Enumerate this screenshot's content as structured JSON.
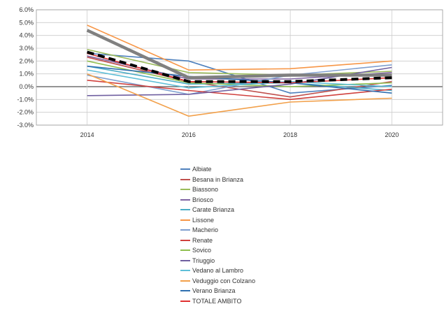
{
  "chart_data": {
    "type": "line",
    "title": "",
    "xlabel": "",
    "ylabel": "",
    "x": [
      2014,
      2016,
      2018,
      2020
    ],
    "xticks": [
      "2014",
      "2016",
      "2018",
      "2020"
    ],
    "xlim": [
      2013,
      2021
    ],
    "ylim": [
      -3.0,
      6.0
    ],
    "yticks": [
      "-3.0%",
      "-2.0%",
      "-1.0%",
      "0.0%",
      "1.0%",
      "2.0%",
      "3.0%",
      "4.0%",
      "5.0%",
      "6.0%"
    ],
    "grid": true,
    "legend_position": "bottom",
    "series": [
      {
        "name": "Albiate",
        "color": "#4f81bd",
        "values": [
          2.6,
          2.0,
          -0.5,
          0.1
        ]
      },
      {
        "name": "Besana in Brianza",
        "color": "#c0504d",
        "values": [
          2.3,
          0.4,
          -0.8,
          0.4
        ]
      },
      {
        "name": "Biassono",
        "color": "#9bbb59",
        "values": [
          2.9,
          1.1,
          0.9,
          1.2
        ]
      },
      {
        "name": "Briosco",
        "color": "#8064a2",
        "values": [
          2.4,
          0.6,
          0.6,
          1.1
        ]
      },
      {
        "name": "Carate Brianza",
        "color": "#4bacc6",
        "values": [
          1.6,
          0.2,
          0.3,
          -0.3
        ]
      },
      {
        "name": "Lissone",
        "color": "#f79646",
        "values": [
          4.8,
          1.3,
          1.4,
          2.0
        ]
      },
      {
        "name": "Macherio",
        "color": "#7f9fcf",
        "values": [
          0.9,
          -0.6,
          0.9,
          1.7
        ]
      },
      {
        "name": "Renate",
        "color": "#d0403d",
        "values": [
          0.5,
          -0.3,
          -1.0,
          -0.2
        ]
      },
      {
        "name": "Sovico",
        "color": "#8fbf4f",
        "values": [
          2.0,
          0.3,
          0.0,
          0.3
        ]
      },
      {
        "name": "Triuggio",
        "color": "#6f5fa0",
        "values": [
          -0.7,
          -0.6,
          0.2,
          1.5
        ]
      },
      {
        "name": "Vedano al Lambro",
        "color": "#5fbfd8",
        "values": [
          1.3,
          -0.1,
          0.4,
          0.0
        ]
      },
      {
        "name": "Veduggio con Colzano",
        "color": "#f2a04a",
        "values": [
          1.0,
          -2.3,
          -1.2,
          -0.9
        ]
      },
      {
        "name": "Verano Brianza",
        "color": "#2f6fb0",
        "values": [
          1.6,
          0.8,
          0.3,
          -0.5
        ]
      },
      {
        "name": "TOTALE AMBITO",
        "color": "#e03030",
        "values": [
          2.6,
          0.4,
          0.3,
          0.7
        ]
      }
    ],
    "unlabeled_lines": [
      {
        "color": "#808080",
        "style": "thick-solid",
        "values": [
          4.4,
          0.7,
          0.9,
          0.9
        ]
      },
      {
        "color": "#000000",
        "style": "thick-dashed",
        "values": [
          2.7,
          0.4,
          0.4,
          0.7
        ]
      }
    ]
  }
}
